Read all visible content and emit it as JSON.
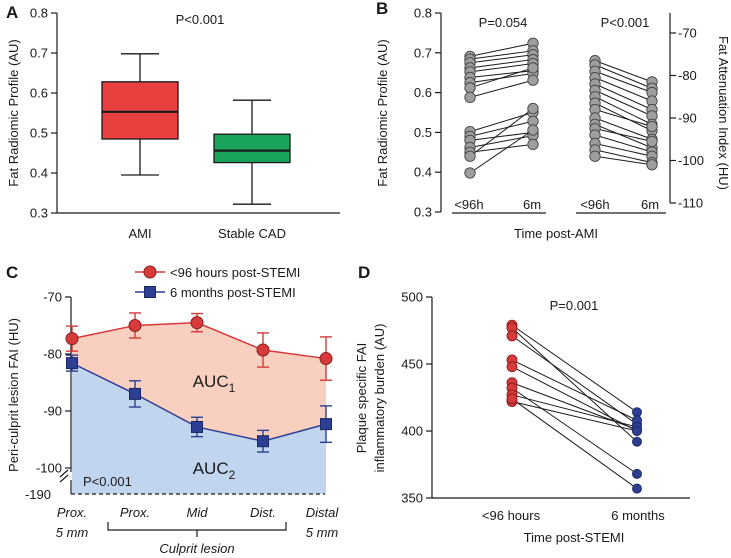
{
  "chart_data": [
    {
      "panel": "A",
      "type": "box",
      "ylabel": "Fat Radiomic Profile (AU)",
      "ylim": [
        0.3,
        0.8
      ],
      "yticks": [
        "0.3",
        "0.4",
        "0.5",
        "0.6",
        "0.7",
        "0.8"
      ],
      "annotation": "P<0.001",
      "categories": [
        "AMI",
        "Stable CAD"
      ],
      "boxes": [
        {
          "name": "AMI",
          "min": 0.395,
          "q1": 0.485,
          "median": 0.553,
          "q3": 0.628,
          "max": 0.698,
          "color": "#e8403f"
        },
        {
          "name": "Stable CAD",
          "min": 0.322,
          "q1": 0.426,
          "median": 0.456,
          "q3": 0.497,
          "max": 0.582,
          "color": "#1aa35a"
        }
      ]
    },
    {
      "panel": "B",
      "type": "paired-line",
      "ylabel_left": "Fat Radiomic Profile (AU)",
      "ylabel_right": "Fat Attenuation Index (HU)",
      "xlabel": "Time post-AMI",
      "ylim_left": [
        0.3,
        0.8
      ],
      "yticks_left": [
        "0.3",
        "0.4",
        "0.5",
        "0.6",
        "0.7",
        "0.8"
      ],
      "ylim_right": [
        -110,
        -70
      ],
      "yticks_right": [
        "-110",
        "-100",
        "-90",
        "-80",
        "-70"
      ],
      "point_color": "#9e9e9e",
      "groups": [
        {
          "annotation": "P=0.054",
          "labels": [
            "<96h",
            "6m"
          ],
          "axis": "left",
          "pairs": [
            [
              0.691,
              0.724
            ],
            [
              0.684,
              0.705
            ],
            [
              0.675,
              0.695
            ],
            [
              0.662,
              0.683
            ],
            [
              0.652,
              0.673
            ],
            [
              0.638,
              0.655
            ],
            [
              0.625,
              0.648
            ],
            [
              0.612,
              0.662
            ],
            [
              0.588,
              0.631
            ],
            [
              0.502,
              0.55
            ],
            [
              0.49,
              0.528
            ],
            [
              0.48,
              0.5
            ],
            [
              0.462,
              0.492
            ],
            [
              0.45,
              0.47
            ],
            [
              0.44,
              0.56
            ],
            [
              0.398,
              0.506
            ]
          ]
        },
        {
          "annotation": "P<0.001",
          "labels": [
            "<96h",
            "6m"
          ],
          "axis": "right",
          "pairs": [
            [
              -76.5,
              -81.5
            ],
            [
              -77.5,
              -83
            ],
            [
              -79,
              -84
            ],
            [
              -80.5,
              -86
            ],
            [
              -82,
              -88
            ],
            [
              -83.5,
              -89.5
            ],
            [
              -85,
              -91.5
            ],
            [
              -86.5,
              -93
            ],
            [
              -88,
              -92
            ],
            [
              -90,
              -95
            ],
            [
              -91.5,
              -97
            ],
            [
              -92.5,
              -95.5
            ],
            [
              -94,
              -98
            ],
            [
              -96,
              -99
            ],
            [
              -97.5,
              -100.5
            ],
            [
              -99,
              -101
            ]
          ]
        }
      ]
    },
    {
      "panel": "C",
      "type": "line-errorbar",
      "ylabel": "Peri-culprit lesion FAI (HU)",
      "ylim": [
        -100,
        -70
      ],
      "yticks": [
        "-70",
        "-80",
        "-90",
        "-100"
      ],
      "ybreak_label": "-190",
      "annotation": "P<0.001",
      "categories": [
        "Prox. 5 mm",
        "Prox.",
        "Mid",
        "Dist.",
        "Distal 5 mm"
      ],
      "category_lines": [
        [
          "Prox.",
          "5 mm"
        ],
        [
          "Prox.",
          ""
        ],
        [
          "Mid",
          ""
        ],
        [
          "Dist.",
          ""
        ],
        [
          "Distal",
          "5 mm"
        ]
      ],
      "bracket_label": "Culprit lesion",
      "auc1": {
        "base": "AUC",
        "sub": "1"
      },
      "auc2": {
        "base": "AUC",
        "sub": "2"
      },
      "series": [
        {
          "name": "<96 hours post-STEMI",
          "color": "#d63a3a",
          "fill": "#f9cfc0",
          "values": [
            -77.3,
            -75,
            -74.5,
            -79.3,
            -80.8
          ],
          "err": [
            2.2,
            2.2,
            1.6,
            3.0,
            3.8
          ]
        },
        {
          "name": "6 months post-STEMI",
          "color": "#2c3f93",
          "fill": "#c2d5ee",
          "values": [
            -81.6,
            -87,
            -92.8,
            -95.3,
            -92.3
          ],
          "err": [
            1.4,
            2.3,
            1.7,
            1.9,
            3.2
          ]
        }
      ]
    },
    {
      "panel": "D",
      "type": "paired-line",
      "ylabel_lines": [
        "Plaque specific FAI",
        "inflammatory burden (AU)"
      ],
      "xlabel": "Time post-STEMI",
      "ylim": [
        350,
        500
      ],
      "yticks": [
        "350",
        "400",
        "450",
        "500"
      ],
      "annotation": "P=0.001",
      "categories": [
        "<96 hours",
        "6 months"
      ],
      "colors": [
        "#d63a3a",
        "#2c3f93"
      ],
      "pairs": [
        [
          479,
          414
        ],
        [
          477,
          392
        ],
        [
          471,
          405
        ],
        [
          453,
          408
        ],
        [
          448,
          400
        ],
        [
          436,
          401
        ],
        [
          432,
          368
        ],
        [
          427,
          403
        ],
        [
          422,
          400
        ],
        [
          424,
          357
        ]
      ]
    }
  ]
}
